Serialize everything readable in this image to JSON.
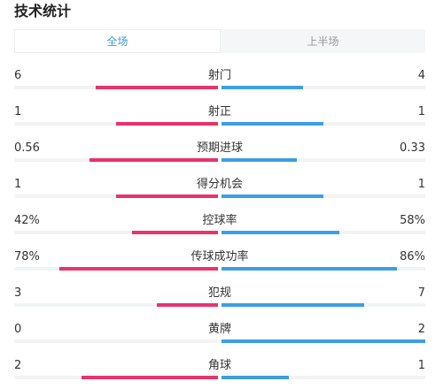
{
  "title": "技术统计",
  "tabs": [
    {
      "label": "全场",
      "active": true
    },
    {
      "label": "上半场",
      "active": false
    }
  ],
  "colors": {
    "home": "#e8336b",
    "away": "#3c9ee6",
    "active_tab": "#3b9ce8"
  },
  "stats": [
    {
      "name": "射门",
      "home": "6",
      "away": "4",
      "home_share": 0.6,
      "away_share": 0.4
    },
    {
      "name": "射正",
      "home": "1",
      "away": "1",
      "home_share": 0.5,
      "away_share": 0.5
    },
    {
      "name": "预期进球",
      "home": "0.56",
      "away": "0.33",
      "home_share": 0.63,
      "away_share": 0.37
    },
    {
      "name": "得分机会",
      "home": "1",
      "away": "1",
      "home_share": 0.5,
      "away_share": 0.5
    },
    {
      "name": "控球率",
      "home": "42%",
      "away": "58%",
      "home_share": 0.42,
      "away_share": 0.58
    },
    {
      "name": "传球成功率",
      "home": "78%",
      "away": "86%",
      "home_share": 0.78,
      "away_share": 0.86
    },
    {
      "name": "犯规",
      "home": "3",
      "away": "7",
      "home_share": 0.3,
      "away_share": 0.7
    },
    {
      "name": "黄牌",
      "home": "0",
      "away": "2",
      "home_share": 0.0,
      "away_share": 1.0
    },
    {
      "name": "角球",
      "home": "2",
      "away": "1",
      "home_share": 0.67,
      "away_share": 0.33
    }
  ]
}
